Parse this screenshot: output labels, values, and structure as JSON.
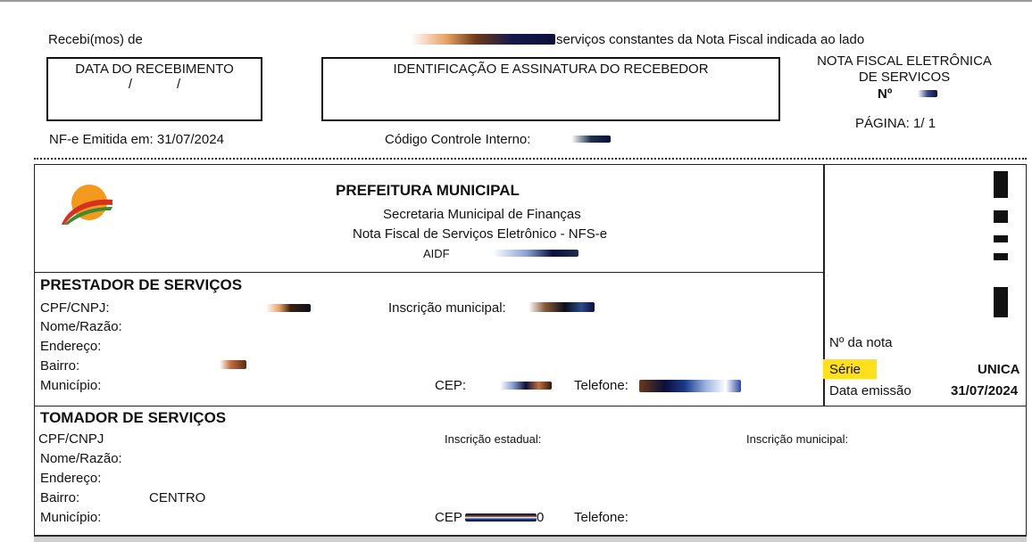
{
  "receipt": {
    "received_prefix": "Recebi(mos) de",
    "received_suffix": "serviços constantes da Nota Fiscal indicada ao lado",
    "date_box_label": "DATA DO RECEBIMENTO",
    "date_box_slashes": "/            /",
    "id_box_label": "IDENTIFICAÇÃO E ASSINATURA DO RECEBEDOR",
    "nfe_title_line1": "NOTA FISCAL ELETRÔNICA",
    "nfe_title_line2": "DE SERVICOS",
    "nfe_number_label": "Nº",
    "page_label": "PÁGINA: 1/ 1",
    "emitted_label": "NF-e Emitida em: 31/07/2024",
    "control_code_label": "Código Controle Interno:"
  },
  "header": {
    "org": "PREFEITURA MUNICIPAL",
    "dept": "Secretaria Municipal de Finanças",
    "doc_type": "Nota Fiscal de Serviços Eletrônico - NFS-e",
    "aidf_label": "AIDF"
  },
  "note_info": {
    "number_label": "Nº da nota",
    "series_label": "Série",
    "series_value": "UNICA",
    "date_label": "Data emissão",
    "date_value": "31/07/2024"
  },
  "provider": {
    "title": "PRESTADOR DE SERVIÇOS",
    "cpf_label": "CPF/CNPJ:",
    "municipal_reg_label": "Inscrição municipal:",
    "name_label": "Nome/Razão:",
    "address_label": "Endereço:",
    "district_label": "Bairro:",
    "city_label": "Município:",
    "cep_label": "CEP:",
    "phone_label": "Telefone:"
  },
  "taker": {
    "title": "TOMADOR DE SERVIÇOS",
    "cpf_label": "CPF/CNPJ",
    "state_reg_label": "Inscrição estadual:",
    "municipal_reg_label": "Inscrição municipal:",
    "name_label": "Nome/Razão:",
    "address_label": "Endereço:",
    "district_label": "Bairro:",
    "district_value": "CENTRO",
    "city_label": "Município:",
    "cep_label": "CEP",
    "cep_trailing": "0",
    "phone_label": "Telefone:"
  },
  "colors": {
    "highlight": "#ffe01a",
    "logo_orange": "#f39a1d",
    "logo_red": "#d6301f",
    "logo_green": "#3a8a2e"
  }
}
